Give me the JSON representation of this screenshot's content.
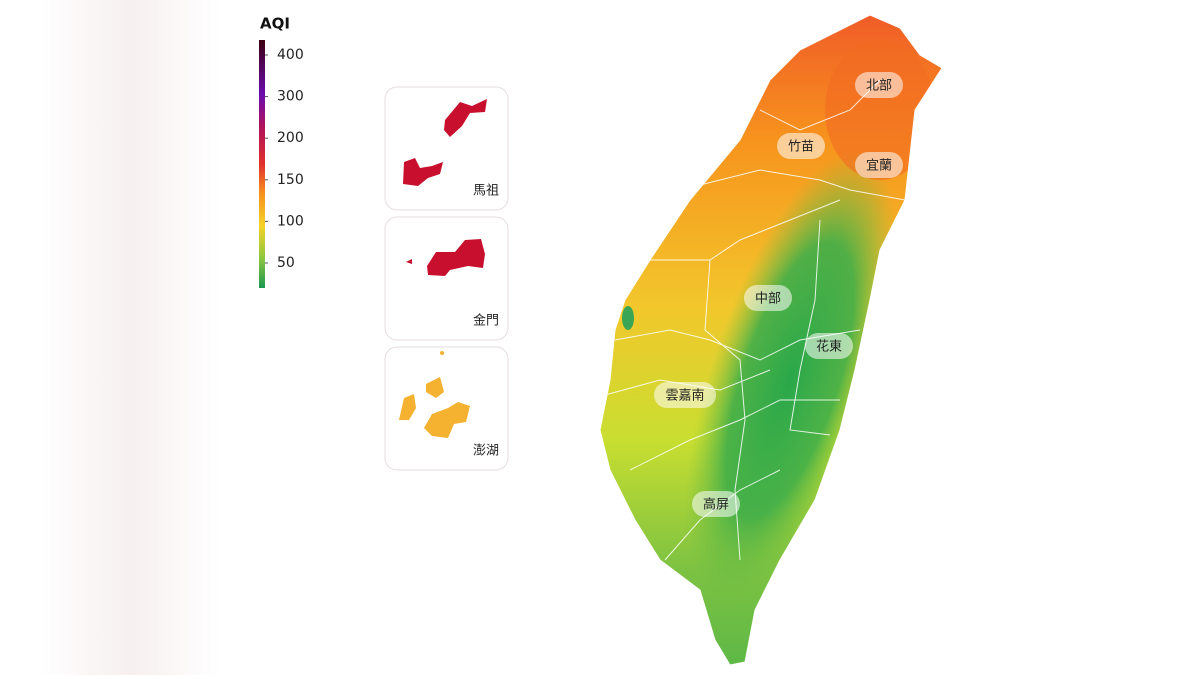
{
  "legend": {
    "title": "AQI",
    "ticks": [
      400,
      300,
      200,
      150,
      100,
      50
    ]
  },
  "islands": [
    {
      "label": "馬祖"
    },
    {
      "label": "金門"
    },
    {
      "label": "澎湖"
    }
  ],
  "regions": [
    {
      "label": "北部"
    },
    {
      "label": "竹苗"
    },
    {
      "label": "宜蘭"
    },
    {
      "label": "中部"
    },
    {
      "label": "花東"
    },
    {
      "label": "雲嘉南"
    },
    {
      "label": "高屏"
    }
  ]
}
